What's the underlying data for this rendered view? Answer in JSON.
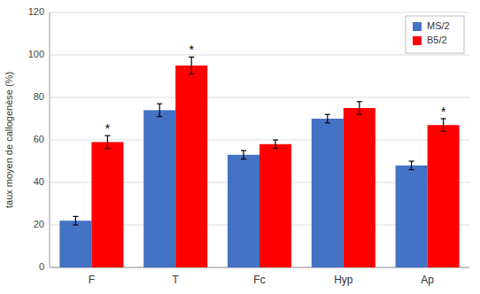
{
  "chart_data": {
    "type": "bar",
    "ylabel": "taux moyen de callogenèse (%)",
    "categories": [
      "F",
      "T",
      "Fc",
      "Hyp",
      "Ap"
    ],
    "series": [
      {
        "name": "MS/2",
        "color": "#4472C4",
        "values": [
          22,
          74,
          53,
          70,
          48
        ],
        "errors": [
          2,
          3,
          2,
          2,
          2
        ]
      },
      {
        "name": "B5/2",
        "color": "#FF0000",
        "values": [
          59,
          95,
          58,
          75,
          67
        ],
        "errors": [
          3,
          4,
          2,
          3,
          3
        ],
        "annotations": [
          "*",
          "*",
          null,
          null,
          "*"
        ]
      }
    ],
    "ylim": [
      0,
      120
    ],
    "yticks": [
      0,
      20,
      40,
      60,
      80,
      100,
      120
    ],
    "grid": true,
    "legend": "upper right"
  }
}
